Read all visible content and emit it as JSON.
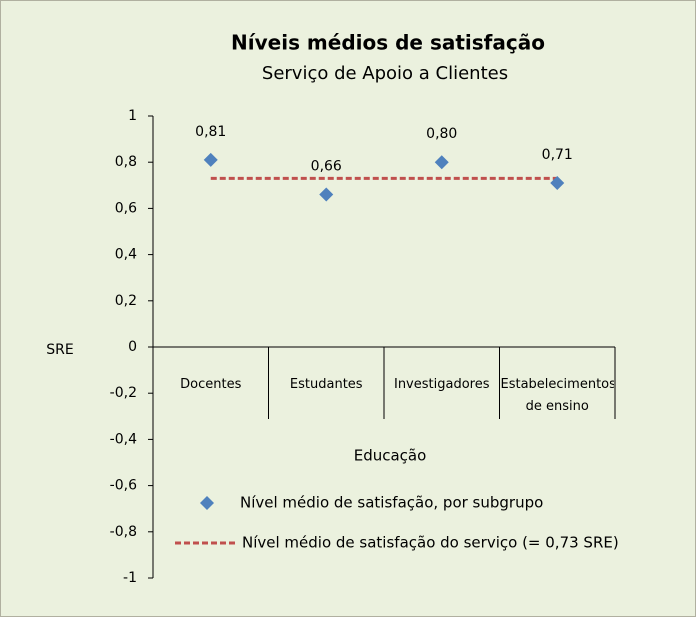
{
  "chart_data": {
    "type": "scatter",
    "title": "Níveis médios de satisfação",
    "subtitle": "Serviço de Apoio a Clientes",
    "y_label": "SRE",
    "x_label": "Educação",
    "categories": [
      "Docentes",
      "Estudantes",
      "Investigadores",
      "Estabelecimentos de ensino"
    ],
    "series": [
      {
        "name": "Nível médio de satisfação, por subgrupo",
        "color": "#4f81bd",
        "marker": "diamond",
        "values": [
          0.81,
          0.66,
          0.8,
          0.71
        ],
        "value_labels": [
          "0,81",
          "0,66",
          "0,80",
          "0,71"
        ]
      }
    ],
    "average": {
      "name": "Nível médio de satisfação do serviço (= 0,73 SRE)",
      "color": "#c0504d",
      "value": 0.73
    },
    "ylim": [
      -1,
      1
    ],
    "yticks": [
      {
        "value": -1,
        "label": "-1"
      },
      {
        "value": -0.8,
        "label": "-0,8"
      },
      {
        "value": -0.6,
        "label": "-0,6"
      },
      {
        "value": -0.4,
        "label": "-0,4"
      },
      {
        "value": -0.2,
        "label": "-0,2"
      },
      0,
      {
        "value": 0.2,
        "label": "0,2"
      },
      {
        "value": 0.4,
        "label": "0,4"
      },
      {
        "value": 0.6,
        "label": "0,6"
      },
      {
        "value": 0.8,
        "label": "0,8"
      },
      1
    ],
    "grid": false
  }
}
